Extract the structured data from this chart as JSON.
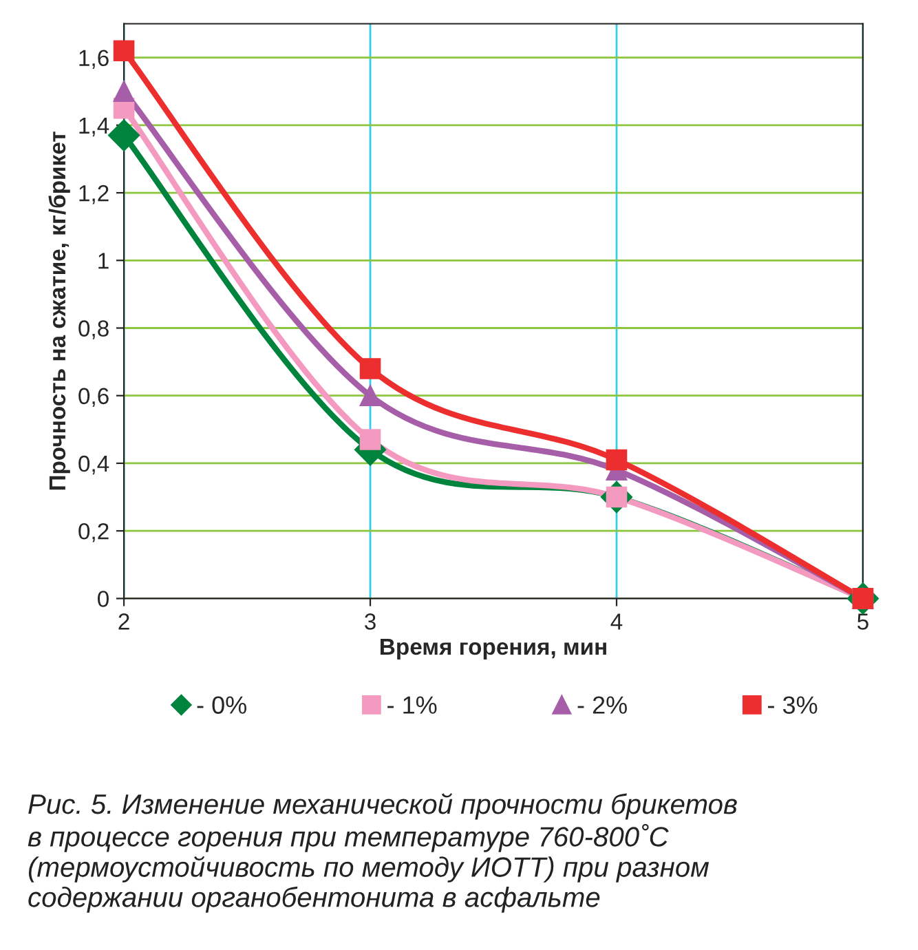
{
  "chart_data": {
    "type": "line",
    "xlabel": "Время горения, мин",
    "ylabel": "Прочность на сжатие, кг/брикет",
    "x": [
      2,
      3,
      4,
      5
    ],
    "series": [
      {
        "name": "- 0%",
        "color": "#00843d",
        "marker": "diamond",
        "values": [
          1.37,
          0.44,
          0.3,
          0
        ]
      },
      {
        "name": "- 1%",
        "color": "#f49ac1",
        "marker": "square",
        "values": [
          1.45,
          0.47,
          0.3,
          0
        ]
      },
      {
        "name": "- 2%",
        "color": "#a65ea8",
        "marker": "triangle",
        "values": [
          1.5,
          0.6,
          0.38,
          0
        ]
      },
      {
        "name": "- 3%",
        "color": "#ed2e2e",
        "marker": "square",
        "values": [
          1.62,
          0.68,
          0.41,
          0
        ]
      }
    ],
    "xlim": [
      2,
      5
    ],
    "xticks": [
      2,
      3,
      4,
      5
    ],
    "ylim": [
      0,
      1.7
    ],
    "yticks": [
      0,
      {
        "value": 0.2,
        "label": "0,2"
      },
      {
        "value": 0.4,
        "label": "0,4"
      },
      {
        "value": 0.6,
        "label": "0,6"
      },
      {
        "value": 0.8,
        "label": "0,8"
      },
      1,
      {
        "value": 1.2,
        "label": "1,2"
      },
      {
        "value": 1.4,
        "label": "1,4"
      },
      {
        "value": 1.6,
        "label": "1,6"
      }
    ],
    "grid": true,
    "legend": "bottom",
    "line_style": "solid",
    "annotations": [
      "Рис. 5. Изменение механической прочности брикетов\nв процессе горения при температуре 760-800˚С\n(термоустойчивость по методу ИОТТ) при разном\nсодержании органобентонита в асфальте"
    ]
  }
}
